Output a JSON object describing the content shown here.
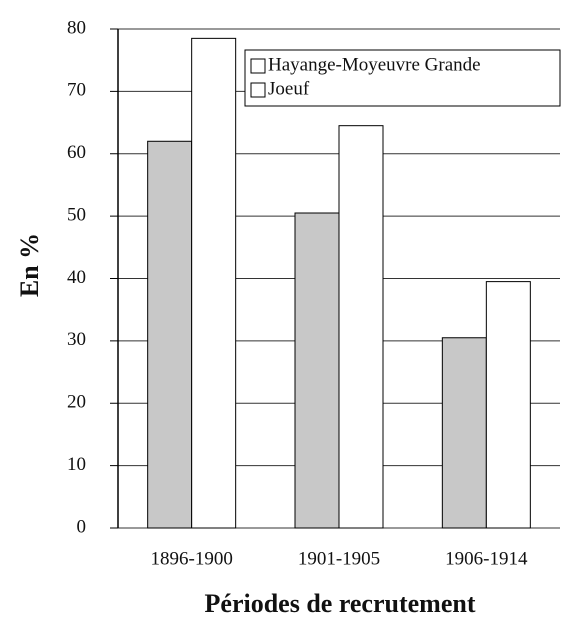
{
  "chart_data": {
    "type": "bar",
    "y_label": "En %",
    "x_label": "Périodes de recrutement",
    "categories": [
      "1896-1900",
      "1901-1905",
      "1906-1914"
    ],
    "series": [
      {
        "name": "Hayange-Moyeuvre Grande",
        "color": "#c8c8c8",
        "values": [
          62,
          50.5,
          30.5
        ]
      },
      {
        "name": "Joeuf",
        "color": "#ffffff",
        "values": [
          78.5,
          64.5,
          39.5
        ]
      }
    ],
    "ylim": [
      0,
      80
    ],
    "yticks": [
      0,
      10,
      20,
      30,
      40,
      50,
      60,
      70,
      80
    ],
    "grid": true,
    "legend": "upper right"
  }
}
